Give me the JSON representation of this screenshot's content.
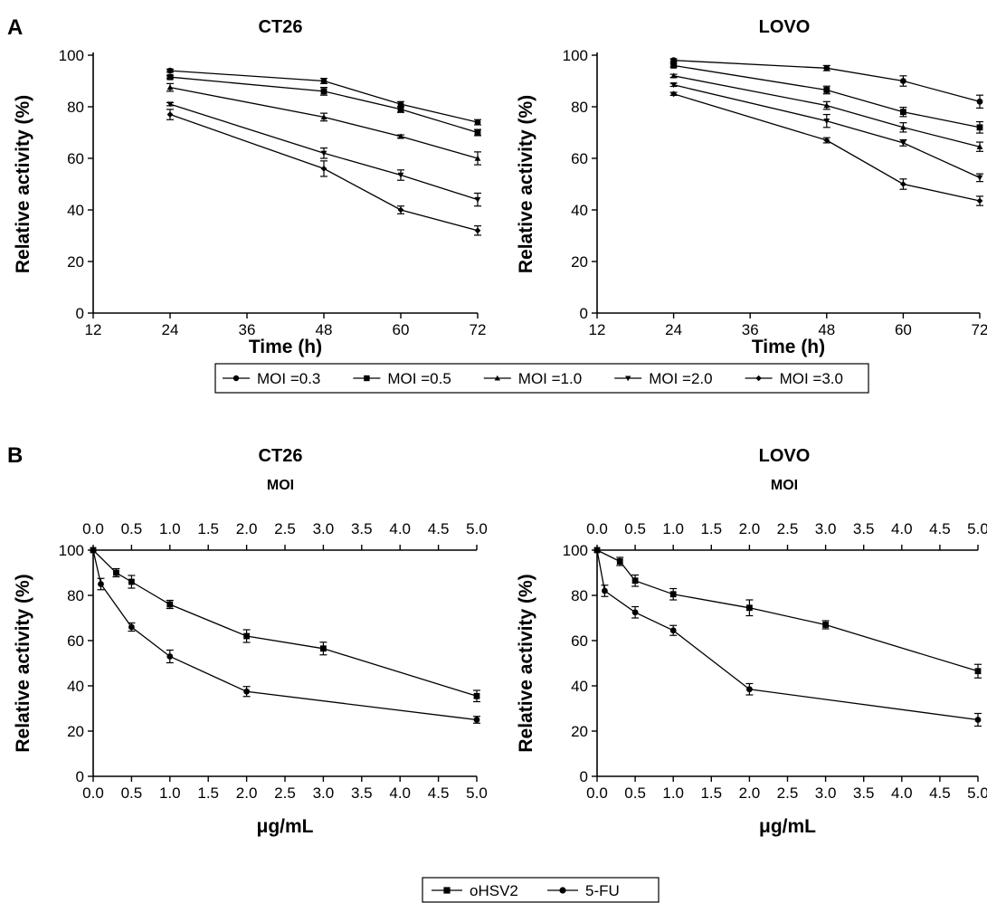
{
  "panel_labels": [
    "A",
    "B"
  ],
  "legendA": [
    "MOI =0.3",
    "MOI =0.5",
    "MOI =1.0",
    "MOI =2.0",
    "MOI =3.0"
  ],
  "legendB": [
    "oHSV2",
    "5-FU"
  ],
  "chart_data": [
    {
      "type": "line",
      "title": "CT26",
      "xlabel": "Time (h)",
      "ylabel": "Relative activity (%)",
      "xlim": [
        12,
        72
      ],
      "ylim": [
        0,
        100
      ],
      "xticks": [
        12,
        24,
        36,
        48,
        60,
        72
      ],
      "yticks": [
        0,
        20,
        40,
        60,
        80,
        100
      ],
      "x": [
        24,
        48,
        60,
        72
      ],
      "series": [
        {
          "name": "MOI =0.3",
          "marker": "circle",
          "values": [
            94,
            90,
            81,
            74
          ],
          "err": [
            0.6,
            1.0,
            1.0,
            1.0
          ]
        },
        {
          "name": "MOI =0.5",
          "marker": "square",
          "values": [
            91.5,
            86,
            79,
            70
          ],
          "err": [
            0.6,
            1.5,
            1.2,
            1.2
          ]
        },
        {
          "name": "MOI =1.0",
          "marker": "triangle",
          "values": [
            87.5,
            76,
            68.5,
            60
          ],
          "err": [
            1.5,
            1.5,
            0.6,
            2.5
          ]
        },
        {
          "name": "MOI =2.0",
          "marker": "triangle-down",
          "values": [
            81,
            62,
            53.5,
            44
          ],
          "err": [
            0.6,
            2.0,
            2.0,
            2.5
          ]
        },
        {
          "name": "MOI =3.0",
          "marker": "diamond",
          "values": [
            77,
            56,
            40,
            32
          ],
          "err": [
            2.0,
            3.0,
            1.5,
            1.8
          ]
        }
      ]
    },
    {
      "type": "line",
      "title": "LOVO",
      "xlabel": "Time (h)",
      "ylabel": "Relative activity (%)",
      "xlim": [
        12,
        72
      ],
      "ylim": [
        0,
        100
      ],
      "xticks": [
        12,
        24,
        36,
        48,
        60,
        72
      ],
      "yticks": [
        0,
        20,
        40,
        60,
        80,
        100
      ],
      "x": [
        24,
        48,
        60,
        72
      ],
      "series": [
        {
          "name": "MOI =0.3",
          "marker": "circle",
          "values": [
            98,
            95,
            90,
            82
          ],
          "err": [
            0.6,
            1.0,
            2.0,
            2.5
          ]
        },
        {
          "name": "MOI =0.5",
          "marker": "square",
          "values": [
            96,
            86.5,
            78,
            72
          ],
          "err": [
            0.6,
            1.5,
            1.8,
            2.2
          ]
        },
        {
          "name": "MOI =1.0",
          "marker": "triangle",
          "values": [
            92,
            80.5,
            72,
            64.5
          ],
          "err": [
            0.6,
            1.5,
            1.8,
            1.8
          ]
        },
        {
          "name": "MOI =2.0",
          "marker": "triangle-down",
          "values": [
            88.5,
            74.5,
            66,
            52.5
          ],
          "err": [
            0.6,
            2.5,
            1.2,
            1.5
          ]
        },
        {
          "name": "MOI =3.0",
          "marker": "diamond",
          "values": [
            85,
            67,
            50,
            43.5
          ],
          "err": [
            0.6,
            1.0,
            2.0,
            1.8
          ]
        }
      ]
    },
    {
      "type": "line",
      "title": "CT26",
      "top_axis_label": "MOI",
      "xlabel": "μg/mL",
      "ylabel": "Relative activity (%)",
      "xlim": [
        0,
        5.0
      ],
      "ylim": [
        0,
        100
      ],
      "xticks": [
        "0.0",
        "0.5",
        "1.0",
        "1.5",
        "2.0",
        "2.5",
        "3.0",
        "3.5",
        "4.0",
        "4.5",
        "5.0"
      ],
      "yticks": [
        0,
        20,
        40,
        60,
        80,
        100
      ],
      "series": [
        {
          "name": "oHSV2",
          "marker": "square",
          "x": [
            0,
            0.3,
            0.5,
            1.0,
            2.0,
            3.0,
            5.0
          ],
          "values": [
            100,
            90,
            86,
            76,
            62,
            56.5,
            35.5
          ],
          "err": [
            0,
            1.8,
            2.8,
            1.8,
            2.8,
            2.8,
            2.5
          ]
        },
        {
          "name": "5-FU",
          "marker": "circle",
          "x": [
            0,
            0.1,
            0.5,
            1.0,
            2.0,
            5.0
          ],
          "values": [
            100,
            85,
            66,
            53,
            37.5,
            25
          ],
          "err": [
            0,
            2.5,
            1.8,
            2.8,
            2.2,
            1.5
          ]
        }
      ]
    },
    {
      "type": "line",
      "title": "LOVO",
      "top_axis_label": "MOI",
      "xlabel": "μg/mL",
      "ylabel": "Relative activity (%)",
      "xlim": [
        0,
        5.0
      ],
      "ylim": [
        0,
        100
      ],
      "xticks": [
        "0.0",
        "0.5",
        "1.0",
        "1.5",
        "2.0",
        "2.5",
        "3.0",
        "3.5",
        "4.0",
        "4.5",
        "5.0"
      ],
      "yticks": [
        0,
        20,
        40,
        60,
        80,
        100
      ],
      "series": [
        {
          "name": "oHSV2",
          "marker": "square",
          "x": [
            0,
            0.3,
            0.5,
            1.0,
            2.0,
            3.0,
            5.0
          ],
          "values": [
            100,
            95,
            86.5,
            80.5,
            74.5,
            67,
            46.5
          ],
          "err": [
            0,
            1.8,
            2.5,
            2.5,
            3.5,
            1.8,
            3.0
          ]
        },
        {
          "name": "5-FU",
          "marker": "circle",
          "x": [
            0,
            0.1,
            0.5,
            1.0,
            2.0,
            5.0
          ],
          "values": [
            100,
            82,
            72.5,
            64.5,
            38.5,
            25
          ],
          "err": [
            0,
            2.5,
            2.5,
            2.2,
            2.5,
            2.8
          ]
        }
      ]
    }
  ]
}
